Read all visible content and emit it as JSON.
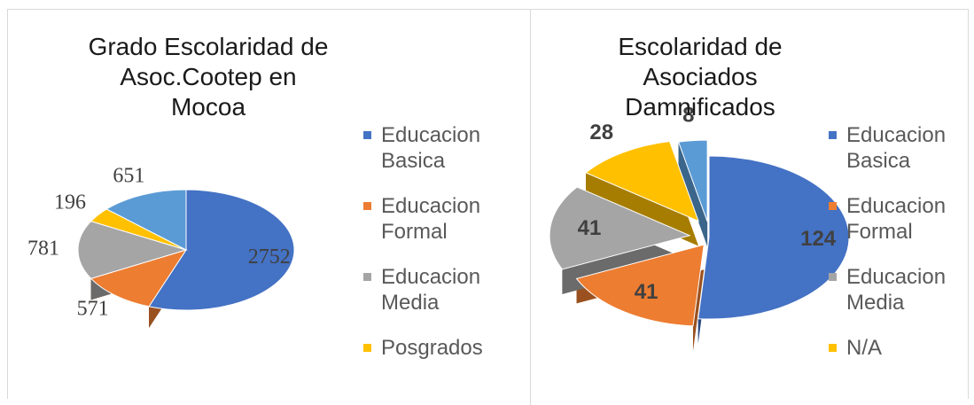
{
  "chart_data": [
    {
      "type": "pie",
      "title": "Grado Escolaridad de Asoc.Cootep en Mocoa",
      "categories": [
        "Educacion Basica",
        "Educacion Formal",
        "Educacion Media",
        "Posgrados",
        null
      ],
      "values": [
        2752,
        571,
        781,
        196,
        651
      ],
      "colors": [
        "#4472c4",
        "#ed7d31",
        "#a5a5a5",
        "#ffc000",
        "#5b9bd5"
      ]
    },
    {
      "type": "pie",
      "title": "Escolaridad de Asociados Damnificados",
      "categories": [
        "Educacion Basica",
        "Educacion Formal",
        "Educacion Media",
        "N/A",
        null
      ],
      "values": [
        124,
        41,
        41,
        28,
        8
      ],
      "colors": [
        "#4472c4",
        "#ed7d31",
        "#a5a5a5",
        "#ffc000",
        "#5b9bd5"
      ]
    }
  ]
}
